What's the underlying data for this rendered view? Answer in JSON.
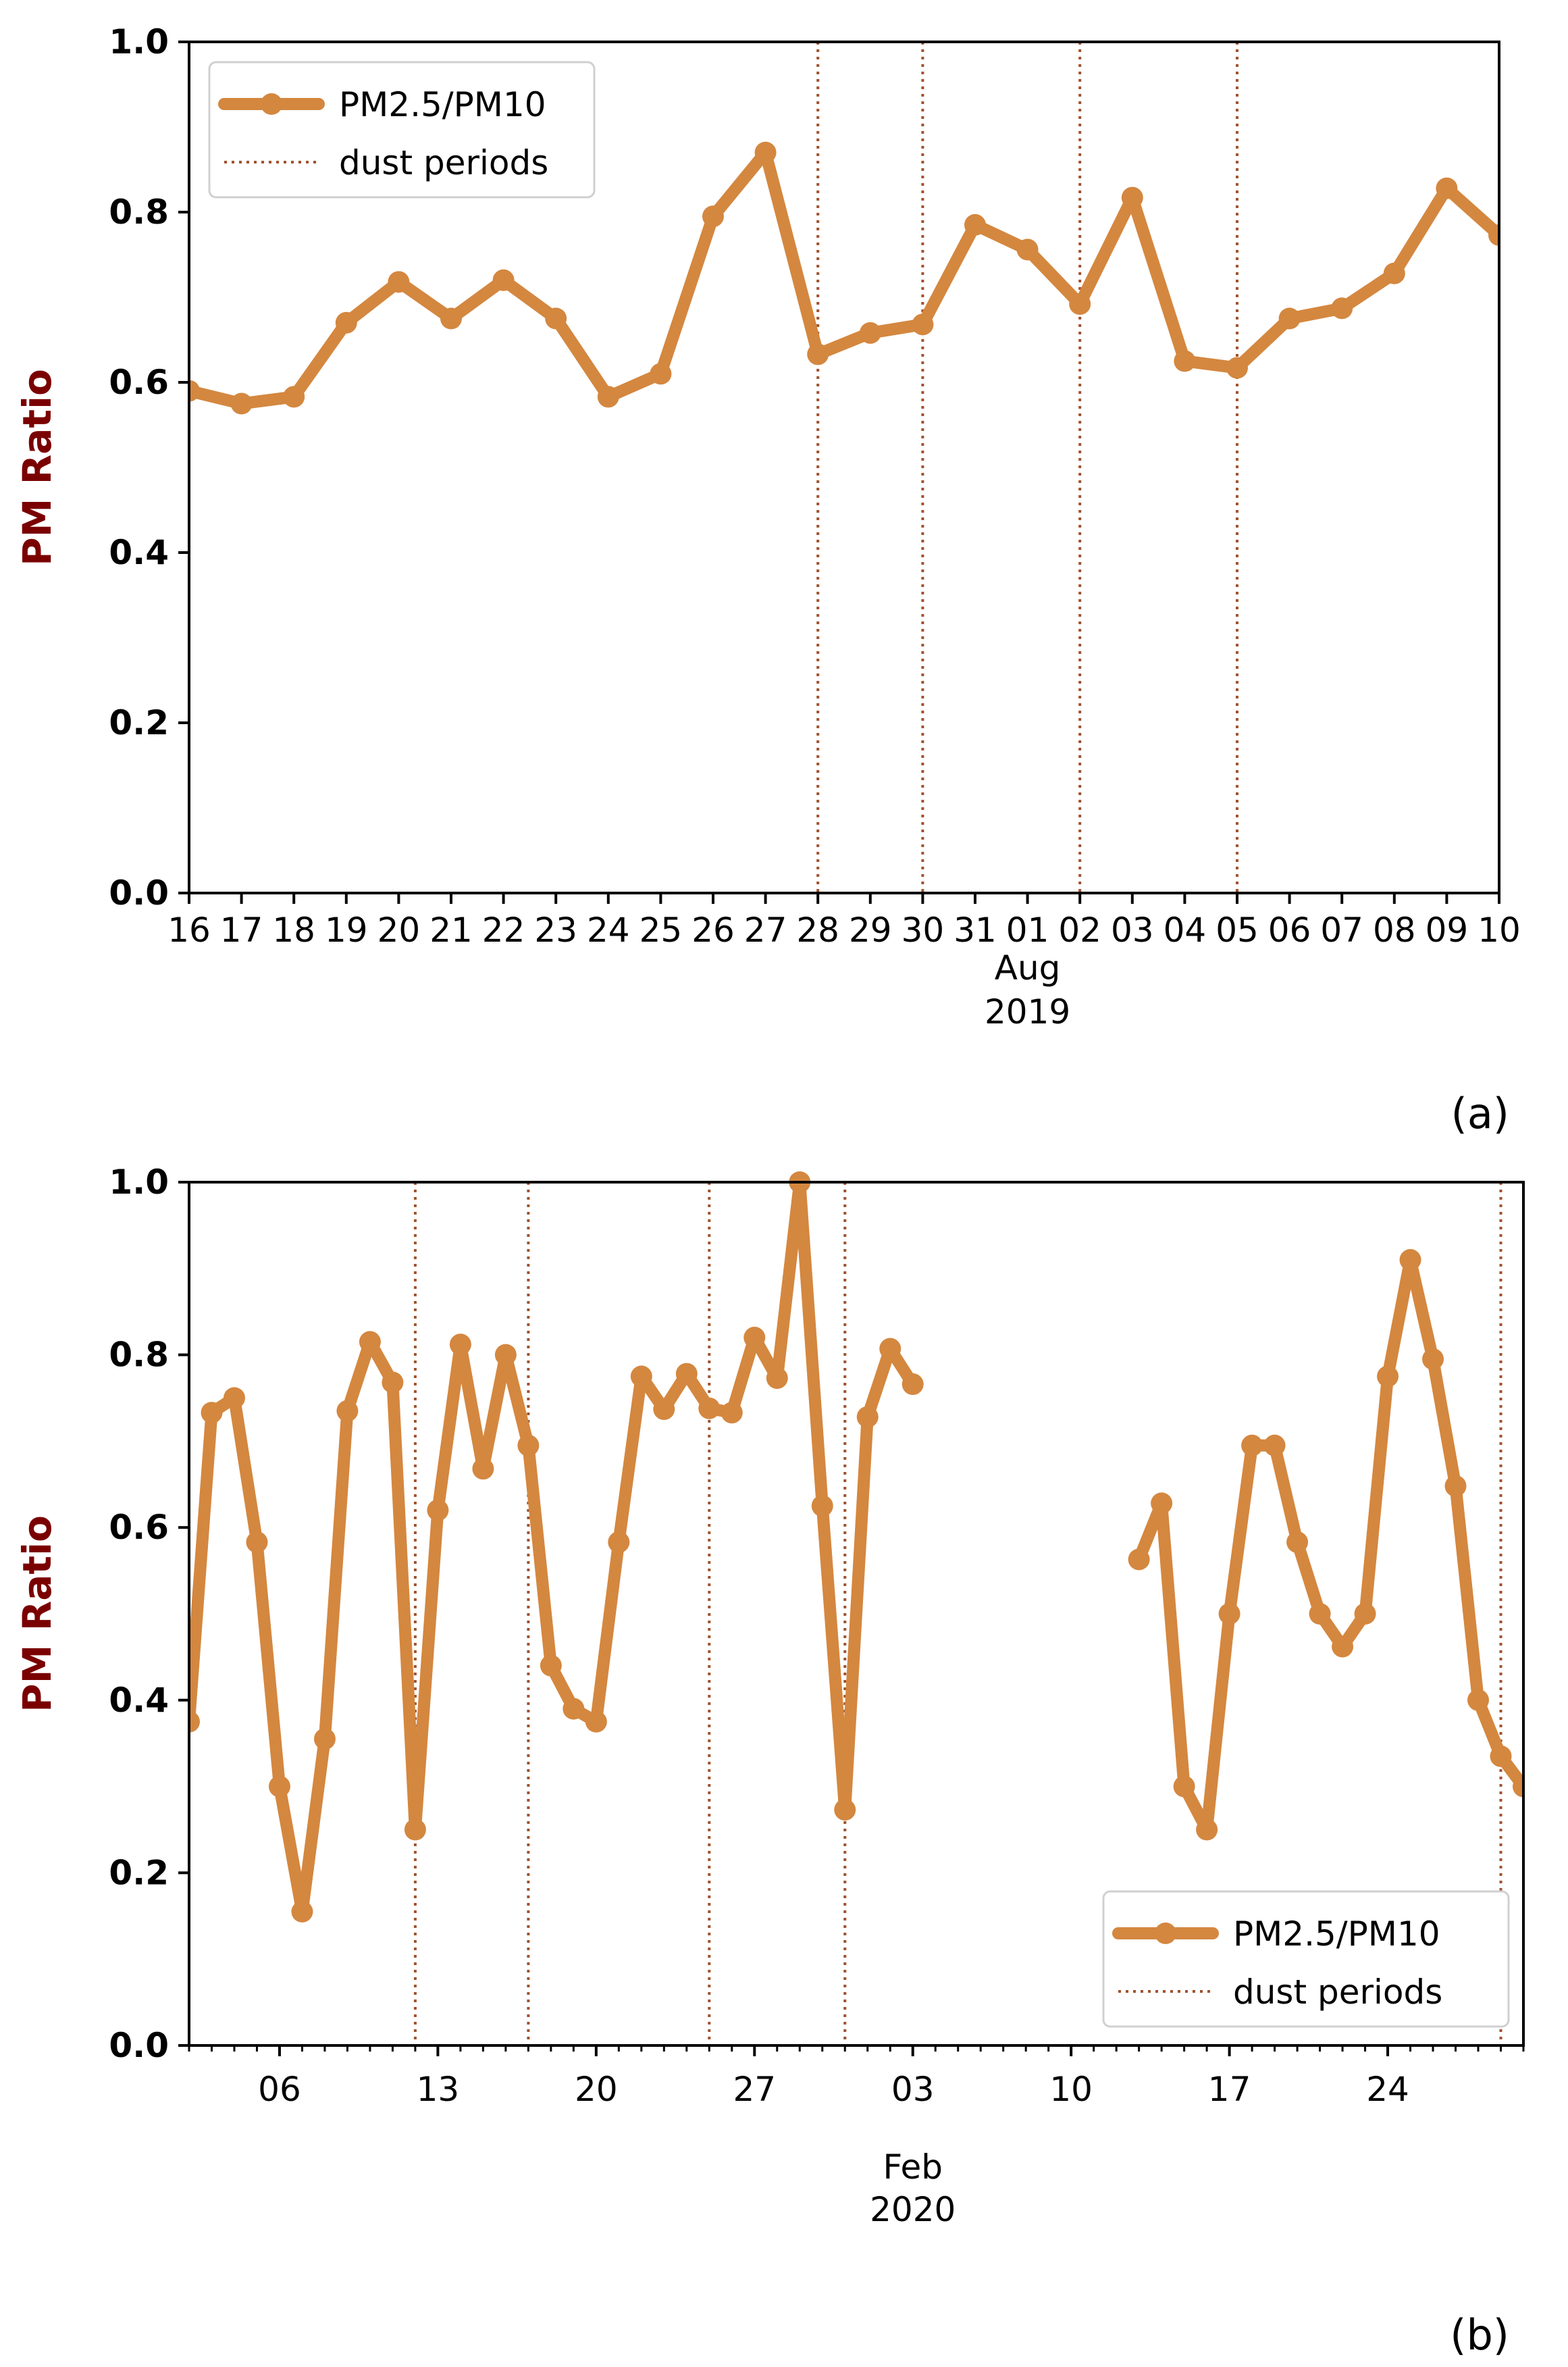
{
  "colors": {
    "series": "#D4873F",
    "dust": "#A0522D",
    "ylabel": "#7A0000",
    "axis": "#000000"
  },
  "chart_data": [
    {
      "type": "line",
      "panel_label": "(a)",
      "ylabel": "PM Ratio",
      "xlabel_lines": [
        "Aug",
        "2019"
      ],
      "ylim": [
        0,
        1.0
      ],
      "yticks": [
        "0.0",
        "0.2",
        "0.4",
        "0.6",
        "0.8",
        "1.0"
      ],
      "xlim": [
        0,
        25
      ],
      "xticks": [
        "16",
        "17",
        "18",
        "19",
        "20",
        "21",
        "22",
        "23",
        "24",
        "25",
        "26",
        "27",
        "28",
        "29",
        "30",
        "31",
        "01",
        "02",
        "03",
        "04",
        "05",
        "06",
        "07",
        "08",
        "09",
        "10"
      ],
      "legend": {
        "placement": "top-left",
        "series_label": "PM2.5/PM10",
        "dust_label": "dust periods"
      },
      "series": [
        {
          "name": "PM2.5/PM10",
          "x": [
            0,
            1,
            2,
            3,
            4,
            5,
            6,
            7,
            8,
            9,
            10,
            11,
            12,
            13,
            14,
            15,
            16,
            17,
            18,
            19,
            20,
            21,
            22,
            23,
            24,
            25
          ],
          "values": [
            0.59,
            0.575,
            0.583,
            0.67,
            0.718,
            0.675,
            0.72,
            0.675,
            0.583,
            0.61,
            0.795,
            0.87,
            0.633,
            0.658,
            0.668,
            0.785,
            0.756,
            0.692,
            0.817,
            0.625,
            0.617,
            0.675,
            0.687,
            0.728,
            0.828,
            0.773
          ]
        }
      ],
      "dust_periods": [
        12,
        14,
        17,
        20
      ]
    },
    {
      "type": "line",
      "panel_label": "(b)",
      "ylabel": "PM Ratio",
      "xlabel_lines": [
        "Feb",
        "2020"
      ],
      "ylim": [
        0,
        1.0
      ],
      "yticks": [
        "0.0",
        "0.2",
        "0.4",
        "0.6",
        "0.8",
        "1.0"
      ],
      "xlim": [
        0,
        59
      ],
      "xticks": [
        {
          "x": 4,
          "label": "06"
        },
        {
          "x": 11,
          "label": "13"
        },
        {
          "x": 18,
          "label": "20"
        },
        {
          "x": 25,
          "label": "27"
        },
        {
          "x": 32,
          "label": "03"
        },
        {
          "x": 39,
          "label": "10"
        },
        {
          "x": 46,
          "label": "17"
        },
        {
          "x": 53,
          "label": "24"
        }
      ],
      "legend": {
        "placement": "bottom-right",
        "series_label": "PM2.5/PM10",
        "dust_label": "dust periods"
      },
      "series": [
        {
          "name": "PM2.5/PM10",
          "segments": [
            {
              "x": [
                0,
                1,
                2,
                3,
                4,
                5,
                6,
                7,
                8,
                9,
                10,
                11,
                12,
                13,
                14,
                15,
                16,
                17,
                18,
                19,
                20,
                21,
                22,
                23,
                24,
                25,
                26,
                27,
                28,
                29,
                30,
                31,
                32
              ],
              "values": [
                0.375,
                0.733,
                0.75,
                0.583,
                0.3,
                0.155,
                0.355,
                0.735,
                0.815,
                0.768,
                0.25,
                0.62,
                0.812,
                0.668,
                0.8,
                0.695,
                0.44,
                0.39,
                0.375,
                0.583,
                0.775,
                0.737,
                0.778,
                0.738,
                0.733,
                0.82,
                0.773,
                1.0,
                0.625,
                0.273,
                0.728,
                0.807,
                0.766
              ]
            },
            {
              "x": [
                42,
                43,
                44,
                45,
                46,
                47,
                48,
                49,
                50,
                51,
                52,
                53,
                54,
                55,
                56,
                57,
                58,
                59
              ],
              "values": [
                0.563,
                0.628,
                0.3,
                0.25,
                0.5,
                0.695,
                0.695,
                0.583,
                0.5,
                0.462,
                0.5,
                0.775,
                0.91,
                0.795,
                0.648,
                0.4,
                0.335,
                0.3
              ]
            }
          ]
        }
      ],
      "dust_periods": [
        10,
        15,
        23,
        29,
        58
      ]
    }
  ]
}
